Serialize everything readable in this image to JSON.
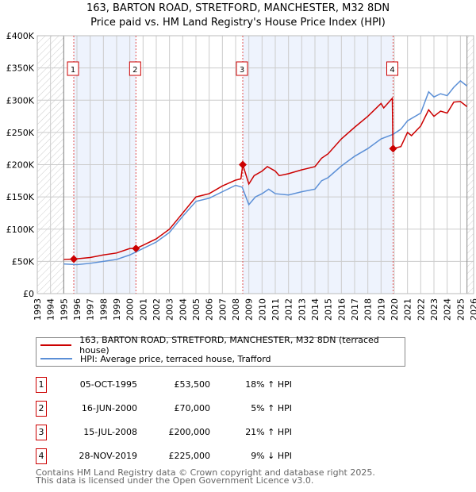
{
  "chart_data": {
    "type": "line",
    "title": "163, BARTON ROAD, STRETFORD, MANCHESTER, M32 8DN",
    "subtitle": "Price paid vs. HM Land Registry's House Price Index (HPI)",
    "ylim": [
      0,
      400000
    ],
    "xlim": [
      1993,
      2026
    ],
    "y_ticks": [
      "£0",
      "£50K",
      "£100K",
      "£150K",
      "£200K",
      "£250K",
      "£300K",
      "£350K",
      "£400K"
    ],
    "x_ticks": [
      "1993",
      "1994",
      "1995",
      "1996",
      "1997",
      "1998",
      "1999",
      "2000",
      "2001",
      "2002",
      "2003",
      "2004",
      "2005",
      "2006",
      "2007",
      "2008",
      "2009",
      "2010",
      "2011",
      "2012",
      "2013",
      "2014",
      "2015",
      "2016",
      "2017",
      "2018",
      "2019",
      "2020",
      "2021",
      "2022",
      "2023",
      "2024",
      "2025",
      "2026"
    ],
    "grid": true,
    "series": [
      {
        "name": "163, BARTON ROAD, STRETFORD, MANCHESTER, M32 8DN (terraced house)",
        "color": "#cc0000",
        "x": [
          1995,
          1995.76,
          1997,
          1998,
          1999,
          2000,
          2000.46,
          2001,
          2002,
          2003,
          2004,
          2005,
          2006,
          2007,
          2008,
          2008.4,
          2008.54,
          2009,
          2009.4,
          2010,
          2010.4,
          2011,
          2011.3,
          2012,
          2013,
          2014,
          2014.5,
          2015,
          2016,
          2017,
          2018,
          2019,
          2019.2,
          2019.85,
          2019.9,
          2020.5,
          2021,
          2021.3,
          2022,
          2022.6,
          2023,
          2023.5,
          2024,
          2024.5,
          2025,
          2025.5
        ],
        "y": [
          53000,
          53500,
          56000,
          60000,
          63000,
          70000,
          70000,
          75000,
          85000,
          100000,
          125000,
          150000,
          155000,
          167000,
          176000,
          178000,
          200000,
          170000,
          183000,
          190000,
          197000,
          190000,
          183000,
          186000,
          192000,
          197000,
          210000,
          217000,
          240000,
          258000,
          275000,
          295000,
          288000,
          303000,
          225000,
          228000,
          250000,
          245000,
          260000,
          285000,
          275000,
          283000,
          280000,
          297000,
          298000,
          290000
        ]
      },
      {
        "name": "HPI: Average price, terraced house, Trafford",
        "color": "#5b8fd6",
        "x": [
          1995,
          1996,
          1997,
          1998,
          1999,
          2000,
          2001,
          2002,
          2003,
          2004,
          2005,
          2006,
          2007,
          2008,
          2008.5,
          2009,
          2009.5,
          2010,
          2010.5,
          2011,
          2012,
          2013,
          2014,
          2014.5,
          2015,
          2016,
          2017,
          2018,
          2019,
          2019.9,
          2020.5,
          2021,
          2022,
          2022.6,
          2023,
          2023.5,
          2024,
          2024.5,
          2025,
          2025.5
        ],
        "y": [
          46000,
          45000,
          47000,
          50000,
          53000,
          60000,
          70000,
          80000,
          95000,
          120000,
          143000,
          148000,
          158000,
          168000,
          165000,
          138000,
          150000,
          155000,
          162000,
          155000,
          153000,
          158000,
          162000,
          175000,
          180000,
          198000,
          213000,
          225000,
          240000,
          247000,
          255000,
          268000,
          280000,
          313000,
          305000,
          310000,
          307000,
          320000,
          330000,
          322000
        ]
      }
    ],
    "sales": [
      {
        "label": "1",
        "x": 1995.76,
        "price": 53500,
        "date": "05-OCT-1995",
        "price_text": "£53,500",
        "hpi": "18% ↑ HPI"
      },
      {
        "label": "2",
        "x": 2000.46,
        "price": 70000,
        "date": "16-JUN-2000",
        "price_text": "£70,000",
        "hpi": "5% ↑ HPI"
      },
      {
        "label": "3",
        "x": 2008.54,
        "price": 200000,
        "date": "15-JUL-2008",
        "price_text": "£200,000",
        "hpi": "21% ↑ HPI"
      },
      {
        "label": "4",
        "x": 2019.91,
        "price": 225000,
        "date": "28-NOV-2019",
        "price_text": "£225,000",
        "hpi": "9% ↓ HPI"
      }
    ],
    "hatch_before": 1995,
    "hatch_after": 2025.5,
    "legend_placement": "bottom"
  },
  "footer": {
    "line1": "Contains HM Land Registry data © Crown copyright and database right 2025.",
    "line2": "This data is licensed under the Open Government Licence v3.0."
  }
}
